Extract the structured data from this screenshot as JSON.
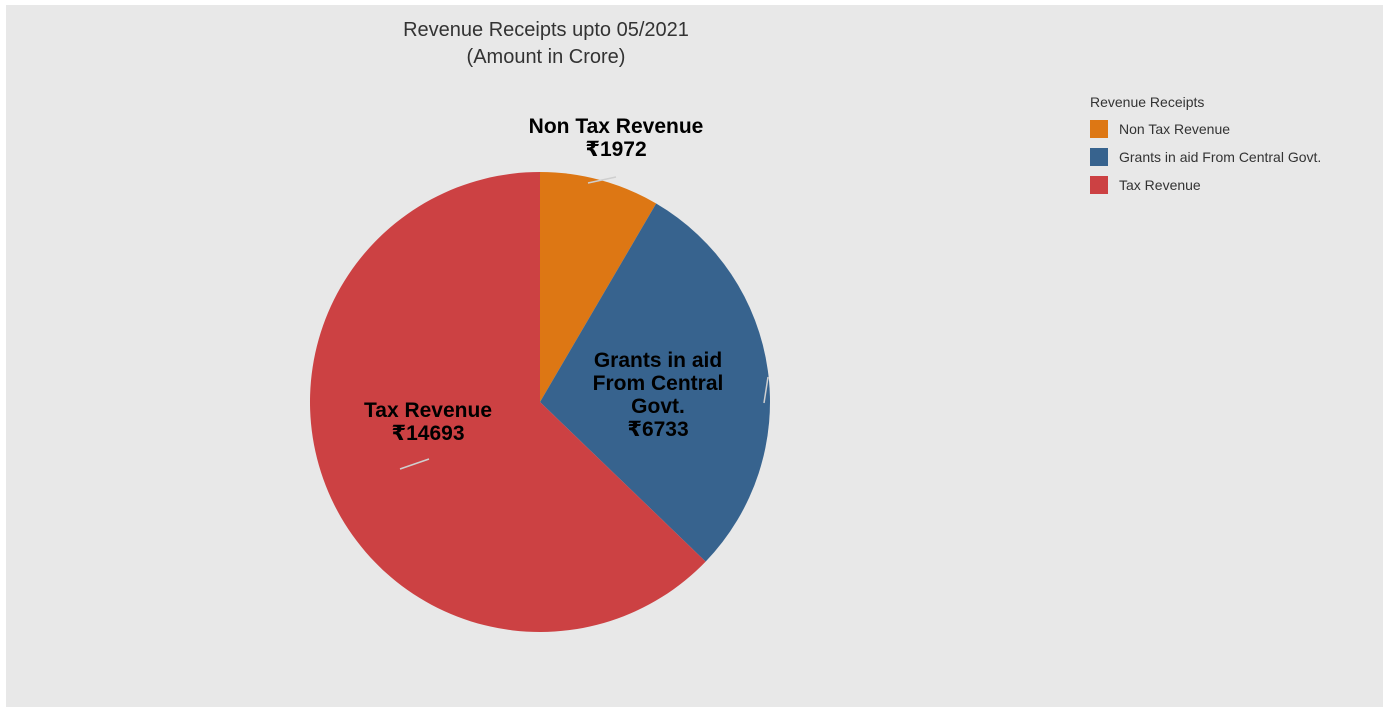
{
  "chart_data": {
    "type": "pie",
    "title": "Revenue Receipts upto 05/2021",
    "subtitle": "(Amount in Crore)",
    "legend_title": "Revenue Receipts",
    "legend_placement": "top-right",
    "slices": [
      {
        "name": "Non Tax Revenue",
        "value": 1972,
        "value_label": "₹1972",
        "color": "#dd7714",
        "label_lines": [
          "Non Tax Revenue",
          "₹1972"
        ]
      },
      {
        "name": "Grants in aid From Central Govt.",
        "value": 6733,
        "value_label": "₹6733",
        "color": "#37638e",
        "label_lines": [
          "Grants in aid",
          "From Central",
          "Govt.",
          "₹6733"
        ]
      },
      {
        "name": "Tax Revenue",
        "value": 14693,
        "value_label": "₹14693",
        "color": "#cc4143",
        "label_lines": [
          "Tax Revenue",
          "₹14693"
        ]
      }
    ]
  }
}
